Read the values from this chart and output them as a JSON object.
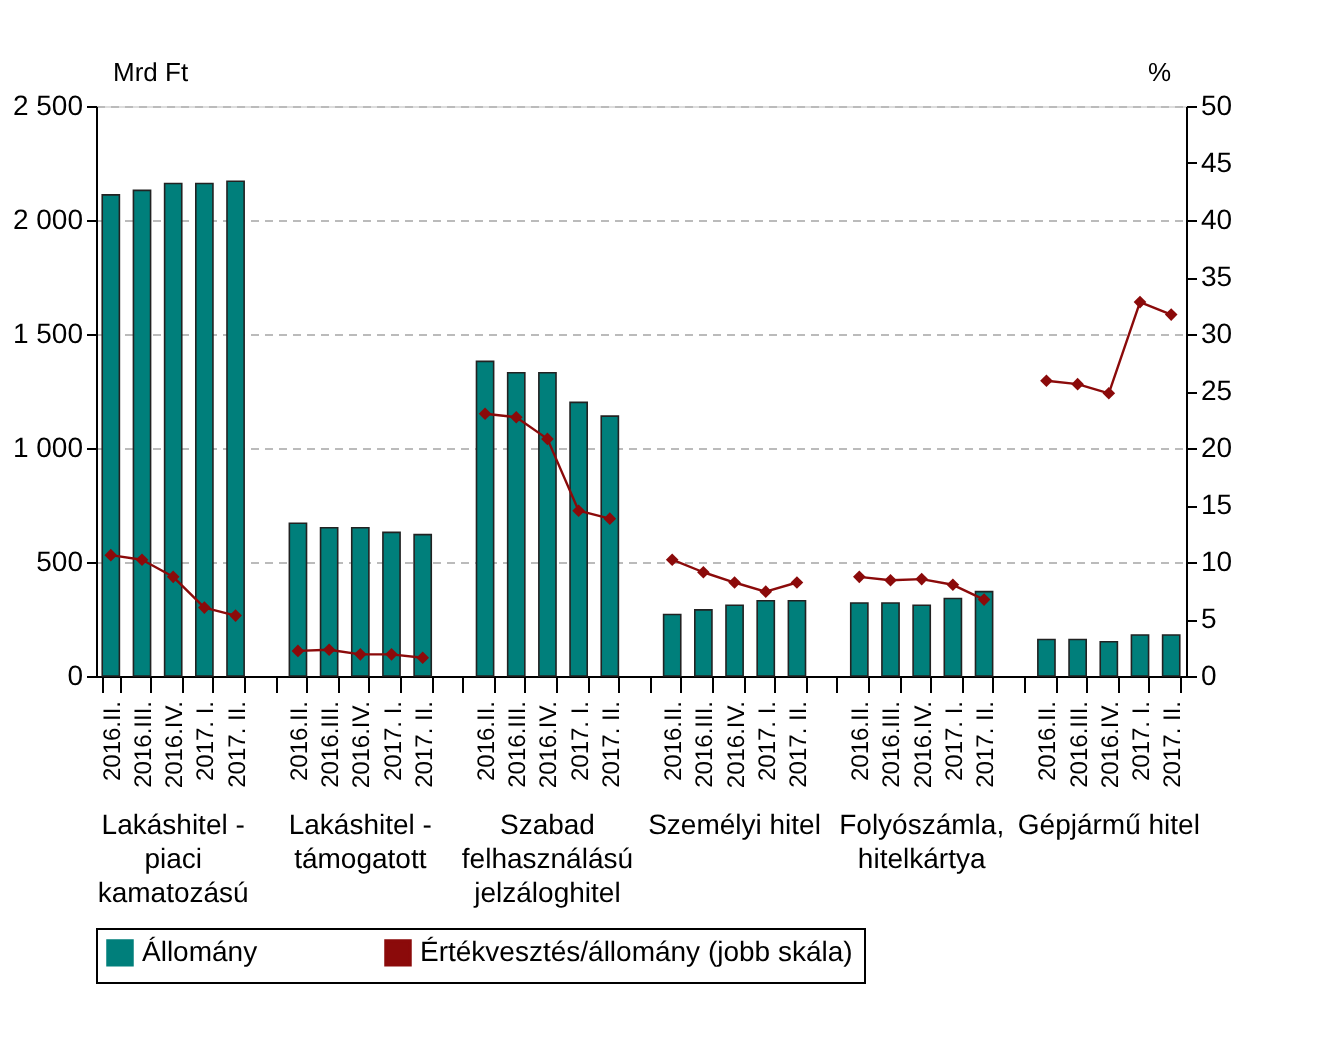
{
  "chart_data": {
    "type": "bar",
    "categories": [
      "2016.II.",
      "2016.III.",
      "2016.IV.",
      "2017. I.",
      "2017. II.",
      null,
      "2016.II.",
      "2016.III.",
      "2016.IV.",
      "2017. I.",
      "2017. II.",
      null,
      "2016.II.",
      "2016.III.",
      "2016.IV.",
      "2017. I.",
      "2017. II.",
      null,
      "2016.II.",
      "2016.III.",
      "2016.IV.",
      "2017. I.",
      "2017. II.",
      null,
      "2016.II.",
      "2016.III.",
      "2016.IV.",
      "2017. I.",
      "2017. II.",
      null,
      "2016.II.",
      "2016.III.",
      "2016.IV.",
      "2017. I.",
      "2017. II."
    ],
    "series": [
      {
        "name": "Állomány",
        "color": "#007f7b",
        "values": [
          2110,
          2130,
          2160,
          2160,
          2170,
          null,
          670,
          650,
          650,
          630,
          620,
          null,
          1380,
          1330,
          1330,
          1200,
          1140,
          null,
          270,
          290,
          310,
          330,
          330,
          null,
          320,
          320,
          310,
          340,
          370,
          null,
          160,
          160,
          150,
          180,
          180
        ]
      },
      {
        "name": "Értékvesztés/állomány (jobb skála)",
        "type": "line",
        "axis": "y2",
        "color": "#8b0a0a",
        "marker": "diamond",
        "values": [
          10.6,
          10.2,
          8.7,
          6.0,
          5.3,
          null,
          2.2,
          2.3,
          1.9,
          1.9,
          1.6,
          null,
          23.0,
          22.7,
          20.8,
          14.5,
          13.8,
          null,
          10.2,
          9.1,
          8.2,
          7.4,
          8.2,
          null,
          8.7,
          8.4,
          8.5,
          8.0,
          6.7,
          null,
          25.9,
          25.6,
          24.8,
          32.8,
          31.7
        ]
      }
    ],
    "ylabel": "Mrd Ft",
    "y2label": "%",
    "ylim": [
      0,
      2500
    ],
    "yticks": [
      0,
      500,
      {
        "value": 1000,
        "label": "1 000"
      },
      {
        "value": 1500,
        "label": "1 500"
      },
      {
        "value": 2000,
        "label": "2 000"
      },
      {
        "value": 2500,
        "label": "2 500"
      }
    ],
    "y2lim": [
      0,
      50
    ],
    "y2ticks": [
      0,
      5,
      10,
      15,
      20,
      25,
      30,
      35,
      40,
      45,
      50
    ],
    "annotations": [
      "Lakáshitel - piaci kamatozású",
      "Lakáshitel - támogatott",
      "Szabad felhasználású jelzáloghitel",
      "Személyi hitel",
      "Folyószámla, hitelkártya",
      "Gépjármű hitel"
    ],
    "grid": "y",
    "legend": "bottom"
  }
}
